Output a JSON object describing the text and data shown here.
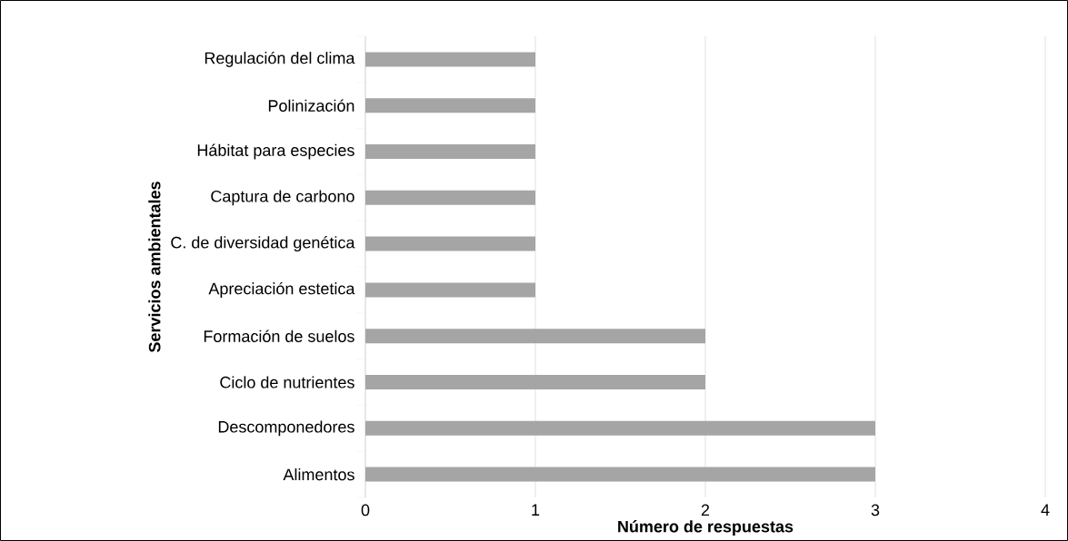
{
  "chart_data": {
    "type": "bar",
    "orientation": "horizontal",
    "categories": [
      "Regulación del clima",
      "Polinización",
      "Hábitat para especies",
      "Captura de carbono",
      "C. de diversidad genética",
      "Apreciación estetica",
      "Formación de suelos",
      "Ciclo de nutrientes",
      "Descomponedores",
      "Alimentos"
    ],
    "values": [
      1,
      1,
      1,
      1,
      1,
      1,
      2,
      2,
      3,
      3
    ],
    "color": "#a5a5a5",
    "xlim": [
      0,
      4
    ],
    "xticks": [
      0,
      1,
      2,
      3,
      4
    ],
    "grid": "x",
    "xlabel": "Número de respuestas",
    "ylabel": "Servicios ambientales"
  }
}
